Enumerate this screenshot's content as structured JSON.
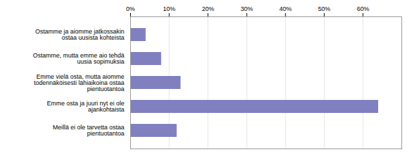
{
  "chart_data": {
    "type": "bar",
    "orientation": "horizontal",
    "categories": [
      "Ostamme ja aiomme jatkossakin\nostaa uusista kohteista",
      "Ostamme, mutta emme aio tehdä\nuusia sopimuksia",
      "Emme vielä osta, mutta aiomme\ntodennäköisesti lähiaikoina ostaa\npientuotantoa",
      "Emme osta ja juuri nyt ei ole\najankohtaista",
      "Meillä ei ole tarvetta ostaa\npientuotantoa"
    ],
    "values": [
      4,
      8,
      13,
      64,
      12
    ],
    "color": "#8080c0",
    "xlim": [
      0,
      70
    ],
    "xticks": [
      {
        "value": 0,
        "label": "0%"
      },
      {
        "value": 10,
        "label": "10%"
      },
      {
        "value": 20,
        "label": "20%"
      },
      {
        "value": 30,
        "label": "30%"
      },
      {
        "value": 40,
        "label": "40%"
      },
      {
        "value": 50,
        "label": "50%"
      },
      {
        "value": 60,
        "label": "60%"
      }
    ],
    "grid": true
  }
}
